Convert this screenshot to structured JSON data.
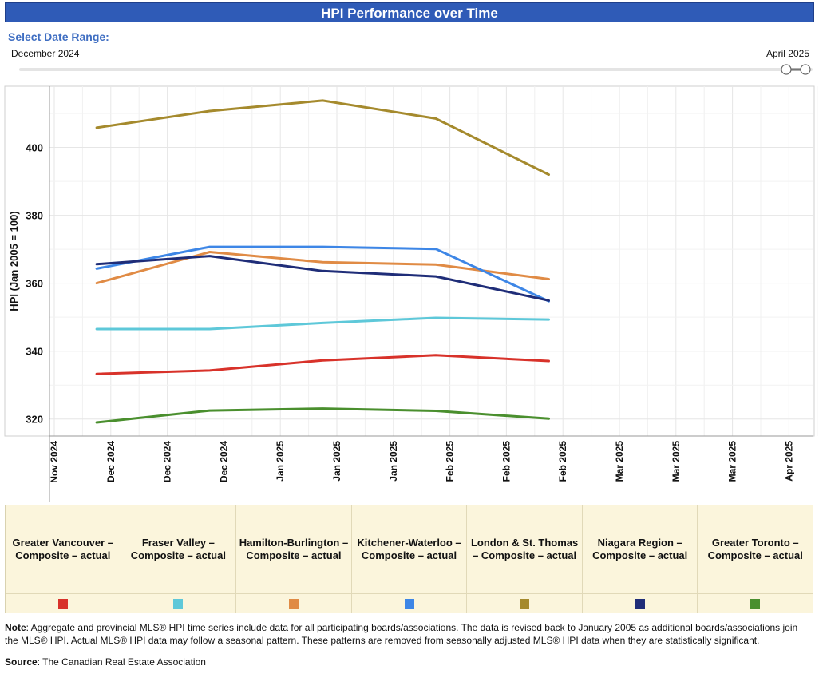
{
  "header": {
    "title": "HPI Performance over Time",
    "range_label": "Select Date Range:",
    "range_start": "December 2024",
    "range_end": "April 2025"
  },
  "chart_data": {
    "type": "line",
    "title": "HPI Performance over Time",
    "xlabel": "",
    "ylabel": "HPI (Jan 2005 = 100)",
    "ylim": [
      315,
      418
    ],
    "yticks": [
      320,
      340,
      360,
      380,
      400
    ],
    "xticks": [
      "Nov 2024",
      "Dec 2024",
      "Dec 2024",
      "Dec 2024",
      "Jan 2025",
      "Jan 2025",
      "Jan 2025",
      "Feb 2025",
      "Feb 2025",
      "Feb 2025",
      "Mar 2025",
      "Mar 2025",
      "Mar 2025",
      "Apr 2025"
    ],
    "x": [
      "Dec 2024",
      "Jan 2025",
      "Feb 2025",
      "Mar 2025",
      "Apr 2025"
    ],
    "x_tick_positions": [
      0.75,
      2.75,
      4.75,
      6.75,
      8.75
    ],
    "grid": true,
    "series": [
      {
        "name": "Greater Vancouver – Composite – actual",
        "color": "#d8322a",
        "values": [
          333.3,
          334.3,
          337.3,
          338.8,
          337.1
        ]
      },
      {
        "name": "Fraser Valley – Composite – actual",
        "color": "#5ec8d9",
        "values": [
          346.5,
          346.5,
          348.3,
          349.8,
          349.3
        ]
      },
      {
        "name": "Hamilton-Burlington – Composite – actual",
        "color": "#e08b45",
        "values": [
          360.0,
          369.2,
          366.2,
          365.5,
          361.2
        ]
      },
      {
        "name": "Kitchener-Waterloo – Composite – actual",
        "color": "#3d86e6",
        "values": [
          364.3,
          370.7,
          370.7,
          370.1,
          354.7
        ]
      },
      {
        "name": "London & St. Thomas – Composite – actual",
        "color": "#a58a2d",
        "values": [
          405.8,
          410.7,
          413.8,
          408.5,
          392.0
        ]
      },
      {
        "name": "Niagara Region – Composite – actual",
        "color": "#1f2d78",
        "values": [
          365.6,
          368.0,
          363.6,
          362.0,
          354.9
        ]
      },
      {
        "name": "Greater Toronto – Composite – actual",
        "color": "#4a8f2e",
        "values": [
          319.0,
          322.5,
          323.1,
          322.4,
          320.1
        ]
      }
    ]
  },
  "legend": {
    "items": [
      {
        "label": "Greater Vancouver – Composite – actual",
        "color": "#d8322a"
      },
      {
        "label": "Fraser Valley – Composite – actual",
        "color": "#5ec8d9"
      },
      {
        "label": "Hamilton-Burlington – Composite – actual",
        "color": "#e08b45"
      },
      {
        "label": "Kitchener-Waterloo – Composite – actual",
        "color": "#3d86e6"
      },
      {
        "label": "London & St. Thomas – Composite – actual",
        "color": "#a58a2d"
      },
      {
        "label": "Niagara Region – Composite – actual",
        "color": "#1f2d78"
      },
      {
        "label": "Greater Toronto – Composite – actual",
        "color": "#4a8f2e"
      }
    ]
  },
  "footer": {
    "note_label": "Note",
    "note_text": ": Aggregate and provincial MLS® HPI time series include data for all participating boards/associations. The data is revised back to January 2005 as additional boards/associations join the MLS® HPI. Actual MLS® HPI data may follow a seasonal pattern. These patterns are removed from seasonally adjusted MLS® HPI data when they are statistically significant.",
    "source_label": "Source",
    "source_text": ": The Canadian Real Estate Association"
  }
}
